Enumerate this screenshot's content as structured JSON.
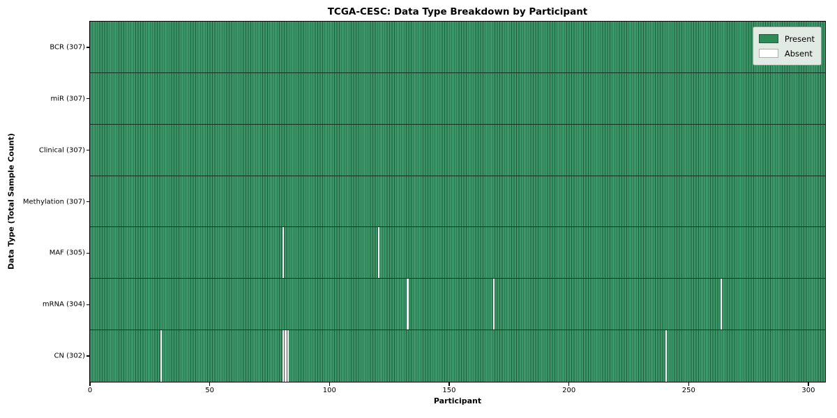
{
  "chart_data": {
    "type": "heatmap",
    "title": "TCGA-CESC: Data Type Breakdown by Participant",
    "xlabel": "Participant",
    "ylabel": "Data Type (Total Sample Count)",
    "xlim": [
      0,
      307
    ],
    "n_participants": 307,
    "x_ticks": [
      0,
      50,
      100,
      150,
      200,
      250,
      300
    ],
    "grid": false,
    "legend": {
      "position": "upper-right",
      "entries": [
        {
          "label": "Present",
          "color": "#2e8b57"
        },
        {
          "label": "Absent",
          "color": "#ffffff"
        }
      ]
    },
    "rows": [
      {
        "label": "BCR (307)",
        "data_type": "BCR",
        "total_samples": 307,
        "absent_participants": []
      },
      {
        "label": "miR (307)",
        "data_type": "miR",
        "total_samples": 307,
        "absent_participants": []
      },
      {
        "label": "Clinical (307)",
        "data_type": "Clinical",
        "total_samples": 307,
        "absent_participants": []
      },
      {
        "label": "Methylation (307)",
        "data_type": "Methylation",
        "total_samples": 307,
        "absent_participants": []
      },
      {
        "label": "MAF (305)",
        "data_type": "MAF",
        "total_samples": 305,
        "absent_participants": [
          80,
          120
        ]
      },
      {
        "label": "mRNA (304)",
        "data_type": "mRNA",
        "total_samples": 304,
        "absent_participants": [
          132,
          168,
          263
        ]
      },
      {
        "label": "CN (302)",
        "data_type": "CN",
        "total_samples": 302,
        "absent_participants": [
          29,
          80,
          81,
          82,
          240
        ]
      }
    ],
    "colors": {
      "present_fill": "#3b9768",
      "cell_edge": "#1f5c3c",
      "row_divider": "#16301f",
      "plot_border": "#000000",
      "absent_fill": "#ffffff",
      "legend_present": "#2e8b57",
      "legend_absent": "#ffffff",
      "legend_bg": "#e2ebe3",
      "legend_border": "#8f9a90",
      "text": "#000000"
    }
  }
}
